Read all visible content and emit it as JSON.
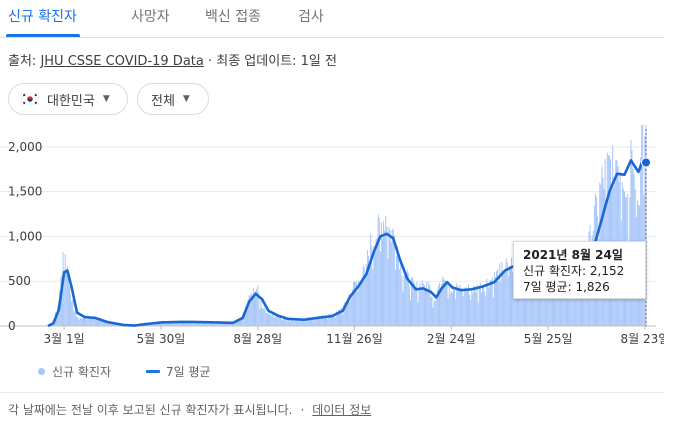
{
  "tabs": [
    {
      "label": "신규 확진자"
    },
    {
      "label": "사망자"
    },
    {
      "label": "백신 접종"
    },
    {
      "label": "검사"
    }
  ],
  "source": {
    "prefix": "출처: ",
    "link": "JHU CSSE COVID-19 Data",
    "suffix": " · 최종 업데이트: 1일 전"
  },
  "filters": {
    "country": "대한민국",
    "country_flag_icon": "south-korea-flag-icon",
    "range": "전체"
  },
  "tooltip": {
    "date": "2021년 8월 24일",
    "cases_label": "신규 확진자: ",
    "cases_value": "2,152",
    "avg_label": "7일 평균: ",
    "avg_value": "1,826"
  },
  "legend": {
    "bars": "신규 확진자",
    "line": "7일 평균"
  },
  "footnote": {
    "text": "각 날짜에는 전날 이후 보고된 신규 확진자가 표시됩니다.",
    "sep": "·",
    "link": "데이터 정보"
  },
  "colors": {
    "accent": "#1a73e8",
    "bars": "#a8c7fa",
    "line": "#1967d2",
    "grid": "#e8eaed",
    "axis_text": "#3c4043"
  },
  "chart_data": {
    "type": "bar",
    "title": "",
    "xlabel": "",
    "ylabel": "",
    "ylim": [
      0,
      2200
    ],
    "yticks": [
      0,
      500,
      1000,
      1500,
      2000
    ],
    "ytick_labels": [
      "0",
      "500",
      "1,000",
      "1,500",
      "2,000"
    ],
    "xtick_labels": [
      "3월 1일",
      "5월 30일",
      "8월 28일",
      "11월 26일",
      "2월 24일",
      "5월 25일",
      "8월 23일"
    ],
    "xtick_dates": [
      "2020-03-01",
      "2020-05-30",
      "2020-08-28",
      "2020-11-26",
      "2021-02-24",
      "2021-05-25",
      "2021-08-23"
    ],
    "x_range": [
      "2020-02-15",
      "2021-08-24"
    ],
    "grid": true,
    "series": [
      {
        "name": "신규 확진자",
        "type": "bar",
        "points": [
          [
            "2020-02-15",
            0
          ],
          [
            "2020-02-20",
            60
          ],
          [
            "2020-02-23",
            170
          ],
          [
            "2020-02-26",
            360
          ],
          [
            "2020-02-29",
            830
          ],
          [
            "2020-03-03",
            720
          ],
          [
            "2020-03-06",
            500
          ],
          [
            "2020-03-09",
            250
          ],
          [
            "2020-03-12",
            110
          ],
          [
            "2020-03-16",
            90
          ],
          [
            "2020-03-22",
            100
          ],
          [
            "2020-04-01",
            90
          ],
          [
            "2020-04-10",
            40
          ],
          [
            "2020-04-20",
            15
          ],
          [
            "2020-05-01",
            8
          ],
          [
            "2020-05-10",
            30
          ],
          [
            "2020-05-20",
            25
          ],
          [
            "2020-05-30",
            45
          ],
          [
            "2020-06-10",
            45
          ],
          [
            "2020-06-25",
            45
          ],
          [
            "2020-07-10",
            40
          ],
          [
            "2020-07-25",
            50
          ],
          [
            "2020-08-05",
            35
          ],
          [
            "2020-08-14",
            100
          ],
          [
            "2020-08-18",
            240
          ],
          [
            "2020-08-22",
            380
          ],
          [
            "2020-08-27",
            420
          ],
          [
            "2020-09-01",
            230
          ],
          [
            "2020-09-07",
            150
          ],
          [
            "2020-09-15",
            110
          ],
          [
            "2020-09-25",
            70
          ],
          [
            "2020-10-05",
            70
          ],
          [
            "2020-10-15",
            90
          ],
          [
            "2020-10-25",
            100
          ],
          [
            "2020-11-01",
            120
          ],
          [
            "2020-11-10",
            150
          ],
          [
            "2020-11-17",
            230
          ],
          [
            "2020-11-22",
            380
          ],
          [
            "2020-11-28",
            500
          ],
          [
            "2020-12-05",
            600
          ],
          [
            "2020-12-12",
            950
          ],
          [
            "2020-12-18",
            1060
          ],
          [
            "2020-12-25",
            1240
          ],
          [
            "2020-12-29",
            1050
          ],
          [
            "2021-01-03",
            1020
          ],
          [
            "2021-01-09",
            650
          ],
          [
            "2021-01-15",
            520
          ],
          [
            "2021-01-22",
            420
          ],
          [
            "2021-01-29",
            500
          ],
          [
            "2021-02-03",
            460
          ],
          [
            "2021-02-08",
            300
          ],
          [
            "2021-02-17",
            620
          ],
          [
            "2021-02-24",
            400
          ],
          [
            "2021-03-05",
            430
          ],
          [
            "2021-03-15",
            400
          ],
          [
            "2021-03-25",
            450
          ],
          [
            "2021-04-05",
            550
          ],
          [
            "2021-04-12",
            620
          ],
          [
            "2021-04-20",
            700
          ],
          [
            "2021-05-01",
            600
          ],
          [
            "2021-05-10",
            560
          ],
          [
            "2021-05-20",
            600
          ],
          [
            "2021-05-30",
            480
          ],
          [
            "2021-06-10",
            560
          ],
          [
            "2021-06-20",
            400
          ],
          [
            "2021-06-30",
            800
          ],
          [
            "2021-07-07",
            1200
          ],
          [
            "2021-07-10",
            1380
          ],
          [
            "2021-07-14",
            1600
          ],
          [
            "2021-07-21",
            1780
          ],
          [
            "2021-07-28",
            1890
          ],
          [
            "2021-08-04",
            1720
          ],
          [
            "2021-08-08",
            1400
          ],
          [
            "2021-08-11",
            2220
          ],
          [
            "2021-08-17",
            1350
          ],
          [
            "2021-08-20",
            2050
          ],
          [
            "2021-08-24",
            2152
          ]
        ]
      },
      {
        "name": "7일 평균",
        "type": "line",
        "points": [
          [
            "2020-02-15",
            0
          ],
          [
            "2020-02-20",
            30
          ],
          [
            "2020-02-25",
            180
          ],
          [
            "2020-03-01",
            600
          ],
          [
            "2020-03-04",
            620
          ],
          [
            "2020-03-08",
            430
          ],
          [
            "2020-03-13",
            150
          ],
          [
            "2020-03-20",
            100
          ],
          [
            "2020-03-30",
            90
          ],
          [
            "2020-04-10",
            45
          ],
          [
            "2020-04-25",
            12
          ],
          [
            "2020-05-05",
            5
          ],
          [
            "2020-05-15",
            20
          ],
          [
            "2020-05-30",
            40
          ],
          [
            "2020-06-15",
            45
          ],
          [
            "2020-07-01",
            45
          ],
          [
            "2020-07-20",
            40
          ],
          [
            "2020-08-05",
            35
          ],
          [
            "2020-08-14",
            90
          ],
          [
            "2020-08-20",
            270
          ],
          [
            "2020-08-26",
            360
          ],
          [
            "2020-09-01",
            300
          ],
          [
            "2020-09-07",
            170
          ],
          [
            "2020-09-15",
            120
          ],
          [
            "2020-09-25",
            80
          ],
          [
            "2020-10-10",
            70
          ],
          [
            "2020-10-25",
            95
          ],
          [
            "2020-11-05",
            110
          ],
          [
            "2020-11-15",
            170
          ],
          [
            "2020-11-22",
            330
          ],
          [
            "2020-11-30",
            450
          ],
          [
            "2020-12-07",
            580
          ],
          [
            "2020-12-14",
            830
          ],
          [
            "2020-12-20",
            1000
          ],
          [
            "2020-12-26",
            1030
          ],
          [
            "2021-01-01",
            980
          ],
          [
            "2021-01-07",
            750
          ],
          [
            "2021-01-14",
            530
          ],
          [
            "2021-01-22",
            410
          ],
          [
            "2021-01-29",
            420
          ],
          [
            "2021-02-05",
            380
          ],
          [
            "2021-02-10",
            320
          ],
          [
            "2021-02-15",
            420
          ],
          [
            "2021-02-20",
            490
          ],
          [
            "2021-02-25",
            430
          ],
          [
            "2021-03-05",
            400
          ],
          [
            "2021-03-15",
            410
          ],
          [
            "2021-03-25",
            440
          ],
          [
            "2021-04-05",
            490
          ],
          [
            "2021-04-15",
            620
          ],
          [
            "2021-04-25",
            680
          ],
          [
            "2021-05-05",
            580
          ],
          [
            "2021-05-15",
            580
          ],
          [
            "2021-05-25",
            600
          ],
          [
            "2021-06-05",
            550
          ],
          [
            "2021-06-15",
            500
          ],
          [
            "2021-06-25",
            490
          ],
          [
            "2021-07-01",
            620
          ],
          [
            "2021-07-07",
            900
          ],
          [
            "2021-07-14",
            1200
          ],
          [
            "2021-07-21",
            1500
          ],
          [
            "2021-07-28",
            1700
          ],
          [
            "2021-08-04",
            1690
          ],
          [
            "2021-08-10",
            1850
          ],
          [
            "2021-08-17",
            1720
          ],
          [
            "2021-08-20",
            1820
          ],
          [
            "2021-08-24",
            1826
          ]
        ]
      }
    ],
    "highlight": {
      "date": "2021-08-24",
      "cases": 2152,
      "avg": 1826
    }
  }
}
